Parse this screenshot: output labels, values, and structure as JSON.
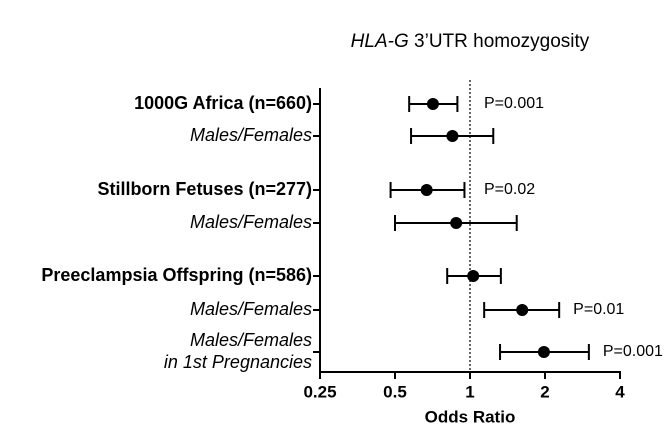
{
  "chart_data": {
    "type": "forest",
    "title": {
      "gene": "HLA-G",
      "text": "3’UTR homozygosity"
    },
    "x_label": "Odds Ratio",
    "log_base": 2,
    "xlim": [
      0.25,
      4
    ],
    "xticks": [
      0.25,
      0.5,
      1,
      2,
      4
    ],
    "reference_line": 1,
    "color": "#000000",
    "categories": [
      {
        "lines": [
          "1000G Africa (n=660)"
        ],
        "style": "bold"
      },
      {
        "lines": [
          "Males/Females"
        ],
        "style": "italic"
      },
      {
        "lines": [
          "Stillborn Fetuses (n=277)"
        ],
        "style": "bold"
      },
      {
        "lines": [
          "Males/Females"
        ],
        "style": "italic"
      },
      {
        "lines": [
          "Preeclampsia Offspring (n=586)"
        ],
        "style": "bold"
      },
      {
        "lines": [
          "Males/Females"
        ],
        "style": "italic"
      },
      {
        "lines": [
          "Males/Females",
          "in 1st Pregnancies"
        ],
        "style": "italic"
      }
    ],
    "values": [
      0.71,
      0.85,
      0.67,
      0.88,
      1.03,
      1.62,
      1.98
    ],
    "lower": [
      0.57,
      0.58,
      0.48,
      0.5,
      0.81,
      1.14,
      1.32
    ],
    "upper": [
      0.89,
      1.24,
      0.95,
      1.54,
      1.33,
      2.28,
      3.0
    ],
    "p_labels": [
      "P=0.001",
      null,
      "P=0.02",
      null,
      null,
      "P=0.01",
      "P=0.001"
    ]
  }
}
